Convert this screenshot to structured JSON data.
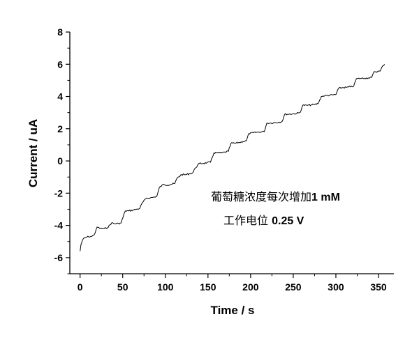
{
  "chart_data": {
    "type": "line",
    "title": "",
    "xlabel": "Time / s",
    "ylabel": "Current / uA",
    "xlim": [
      -12,
      368
    ],
    "ylim": [
      -7,
      8
    ],
    "xticks": [
      0,
      50,
      100,
      150,
      200,
      250,
      300,
      350
    ],
    "xtick_labels": [
      "0",
      "50",
      "100",
      "150",
      "200",
      "250",
      "300",
      "350"
    ],
    "yticks": [
      -6,
      -4,
      -2,
      0,
      2,
      4,
      6,
      8
    ],
    "ytick_labels": [
      "-6",
      "-4",
      "-2",
      "0",
      "2",
      "4",
      "6",
      "8"
    ],
    "grid": false,
    "legend": "none",
    "line_color": "#000000",
    "series": [
      {
        "x": [
          0,
          1,
          3,
          6,
          10,
          14,
          17,
          20,
          24,
          28,
          32,
          37,
          41,
          45,
          48,
          53,
          57,
          62,
          66,
          70,
          73,
          78,
          82,
          86,
          90,
          93,
          98,
          103,
          107,
          111,
          114,
          119,
          124,
          128,
          132,
          135,
          140,
          145,
          149,
          153,
          157,
          161,
          166,
          170,
          174,
          177,
          182,
          187,
          191,
          195,
          198,
          203,
          208,
          212,
          216,
          219,
          224,
          229,
          233,
          237,
          240,
          245,
          250,
          254,
          258,
          261,
          266,
          271,
          275,
          279,
          283,
          287,
          292,
          296,
          300,
          303,
          308,
          313,
          317,
          321,
          324,
          329,
          334,
          338,
          342,
          345,
          349,
          352,
          355,
          357
        ],
        "y": [
          -5.6,
          -5.2,
          -4.9,
          -4.75,
          -4.7,
          -4.68,
          -4.55,
          -4.1,
          -4.2,
          -4.2,
          -4.15,
          -3.85,
          -3.9,
          -3.88,
          -3.85,
          -3.1,
          -3.1,
          -3.05,
          -3.0,
          -2.95,
          -2.6,
          -2.3,
          -2.3,
          -2.25,
          -2.2,
          -1.65,
          -1.45,
          -1.5,
          -1.45,
          -1.4,
          -1.05,
          -0.85,
          -0.85,
          -0.8,
          -0.75,
          -0.45,
          -0.15,
          -0.15,
          -0.1,
          -0.08,
          0.5,
          0.5,
          0.5,
          0.55,
          0.6,
          1.1,
          1.1,
          1.15,
          1.2,
          1.25,
          1.7,
          1.75,
          1.78,
          1.8,
          1.82,
          2.35,
          2.35,
          2.38,
          2.4,
          2.45,
          2.9,
          2.9,
          2.92,
          2.95,
          3.0,
          3.45,
          3.45,
          3.48,
          3.5,
          3.55,
          4.0,
          4.05,
          4.07,
          4.1,
          4.12,
          4.5,
          4.55,
          4.57,
          4.6,
          4.65,
          5.1,
          5.12,
          5.14,
          5.15,
          5.18,
          5.55,
          5.55,
          5.58,
          5.9,
          6.0
        ]
      }
    ],
    "annotations": [
      {
        "text": "葡萄糖浓度每次增加",
        "suffix": "1 mM"
      },
      {
        "text": "工作电位 ",
        "suffix": "0.25 V"
      }
    ]
  }
}
